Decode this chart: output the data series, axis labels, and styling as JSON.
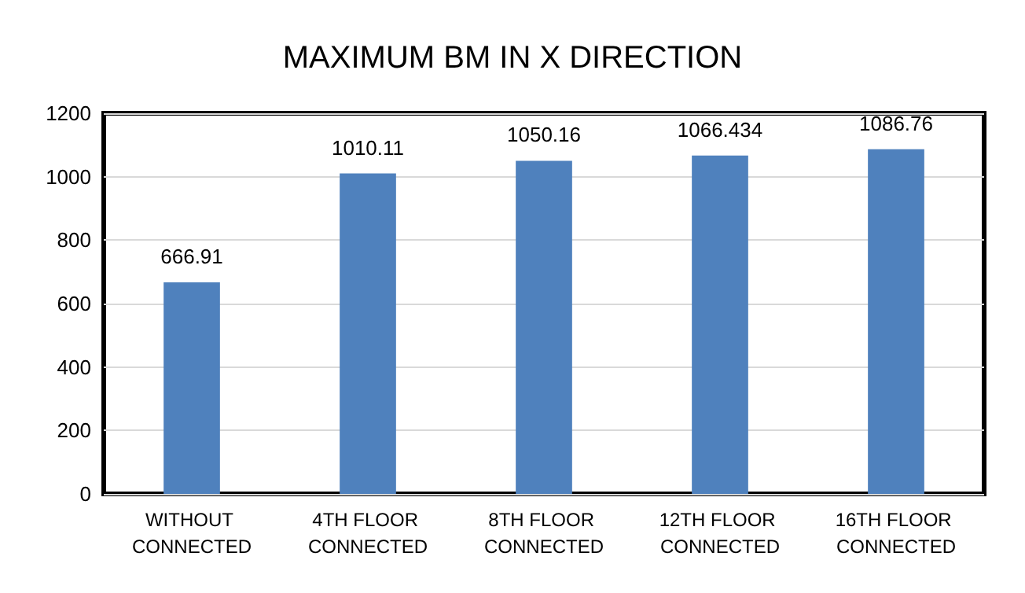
{
  "chart_data": {
    "type": "bar",
    "title": "MAXIMUM BM IN X DIRECTION",
    "categories": [
      "WITHOUT CONNECTED",
      "4TH FLOOR CONNECTED",
      "8TH FLOOR CONNECTED",
      "12TH FLOOR CONNECTED",
      "16TH FLOOR CONNECTED"
    ],
    "values": [
      666.91,
      1010.11,
      1050.16,
      1066.434,
      1086.76
    ],
    "color": "#4f81bd",
    "ylim": [
      0,
      1200
    ],
    "yticks": [
      0,
      200,
      400,
      600,
      800,
      1000,
      1200
    ],
    "grid": "y",
    "data_labels": true
  }
}
